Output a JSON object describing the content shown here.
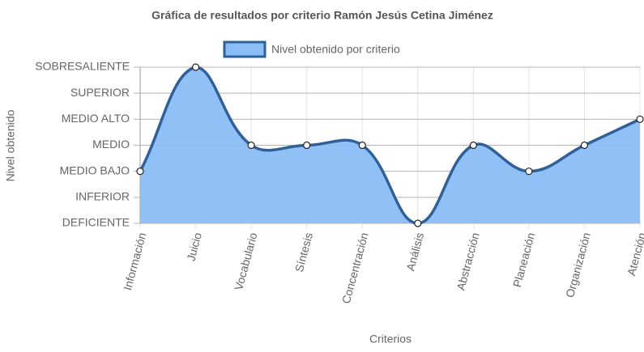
{
  "chart_data": {
    "type": "line",
    "title": "Gráfica de resultados por criterio Ramón Jesús Cetina Jiménez",
    "x_label": "Criterios",
    "y_label": "Nivel obtenido",
    "categories": [
      "Información",
      "Juicio",
      "Vocabulario",
      "Síntesis",
      "Concentración",
      "Análisis",
      "Abstracción",
      "Planeación",
      "Organización",
      "Atención"
    ],
    "series": [
      {
        "name": "Nivel obtenido por criterio",
        "color": "#2f6097",
        "fill": "#8bbdf7",
        "values": [
          2,
          6,
          3,
          3,
          3,
          0,
          3,
          2,
          3,
          4
        ]
      }
    ],
    "ylim": [
      0,
      6
    ],
    "yticks": [
      {
        "value": 0,
        "label": "DEFICIENTE"
      },
      {
        "value": 1,
        "label": "INFERIOR"
      },
      {
        "value": 2,
        "label": "MEDIO BAJO"
      },
      {
        "value": 3,
        "label": "MEDIO"
      },
      {
        "value": 4,
        "label": "MEDIO ALTO"
      },
      {
        "value": 5,
        "label": "SUPERIOR"
      },
      {
        "value": 6,
        "label": "SOBRESALIENTE"
      }
    ],
    "grid": true,
    "legend": "top"
  }
}
